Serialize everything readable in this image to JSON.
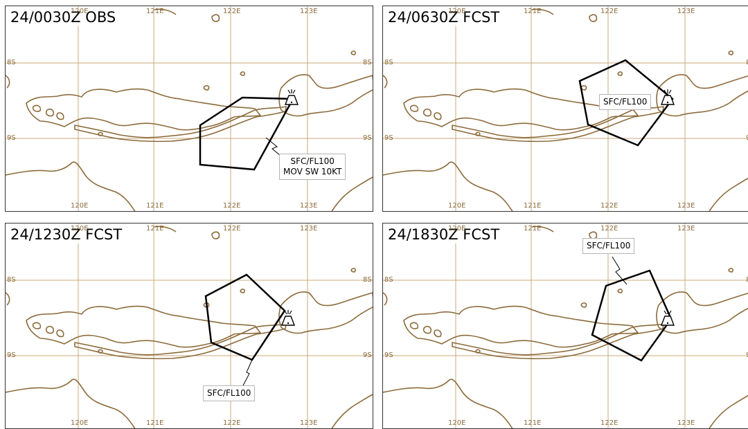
{
  "panels": [
    {
      "title": "24/0030Z OBS",
      "box_lines": [
        "SFC/FL100",
        "MOV SW 10KT"
      ]
    },
    {
      "title": "24/0630Z FCST",
      "box_lines": [
        "SFC/FL100"
      ]
    },
    {
      "title": "24/1230Z FCST",
      "box_lines": [
        "SFC/FL100"
      ]
    },
    {
      "title": "24/1830Z FCST",
      "box_lines": [
        "SFC/FL100"
      ]
    }
  ],
  "grid": {
    "longitudes": [
      "120E",
      "121E",
      "122E",
      "123E"
    ],
    "latitudes": [
      "8S",
      "9S"
    ]
  },
  "colors": {
    "coastline": "#8b6a3a",
    "gridline": "#c8a878",
    "ash_polygon": "#000000"
  },
  "icons": {
    "volcano": "volcano-icon"
  }
}
